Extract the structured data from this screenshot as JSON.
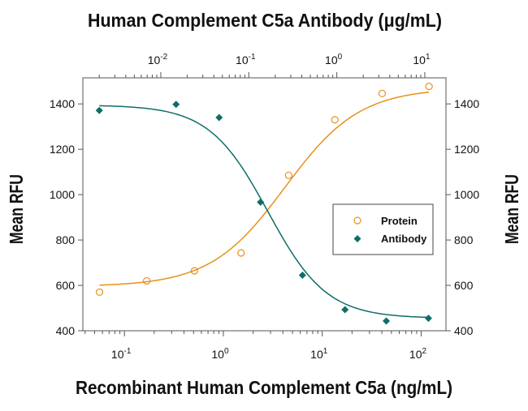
{
  "chart_data": {
    "type": "scatter",
    "top_title": "Human Complement C5a Antibody (μg/mL)",
    "xlabel": "Recombinant Human Complement C5a (ng/mL)",
    "ylabel_left": "Mean RFU",
    "ylabel_right": "Mean RFU",
    "x_scale": "log",
    "xlim": [
      0.038,
      178
    ],
    "x_top_scale": "log",
    "x_top_lim": [
      0.0013,
      17.4
    ],
    "ylim": [
      400,
      1515
    ],
    "y_ticks": [
      400,
      600,
      800,
      1000,
      1200,
      1400
    ],
    "y_tick_labels": [
      "400",
      "600",
      "800",
      "1000",
      "1200",
      "1400"
    ],
    "x_ticks": [
      0.1,
      1,
      10,
      100
    ],
    "x_tick_labels": [
      [
        "10",
        "-1"
      ],
      [
        "10",
        "0"
      ],
      [
        "10",
        "1"
      ],
      [
        "10",
        "2"
      ]
    ],
    "x_top_ticks": [
      0.01,
      0.1,
      1,
      10
    ],
    "x_top_tick_labels": [
      [
        "10",
        "-2"
      ],
      [
        "10",
        "-1"
      ],
      [
        "10",
        "0"
      ],
      [
        "10",
        "1"
      ]
    ],
    "grid": false,
    "legend_placement": "center-right",
    "series": [
      {
        "name": "Protein",
        "axis": "bottom",
        "marker": "open-circle",
        "color": "#E8901A",
        "x": [
          0.056,
          0.168,
          0.51,
          1.51,
          4.57,
          13.4,
          40.3,
          120
        ],
        "y": [
          570,
          620,
          664,
          743,
          1085,
          1330,
          1446,
          1477
        ]
      },
      {
        "name": "Antibody",
        "axis": "top",
        "marker": "filled-diamond",
        "color": "#0E6E68",
        "x": [
          0.002,
          0.0149,
          0.046,
          0.136,
          0.407,
          1.24,
          3.65,
          11.0
        ],
        "y": [
          1371,
          1398,
          1340,
          967,
          645,
          493,
          443,
          455
        ]
      }
    ]
  }
}
